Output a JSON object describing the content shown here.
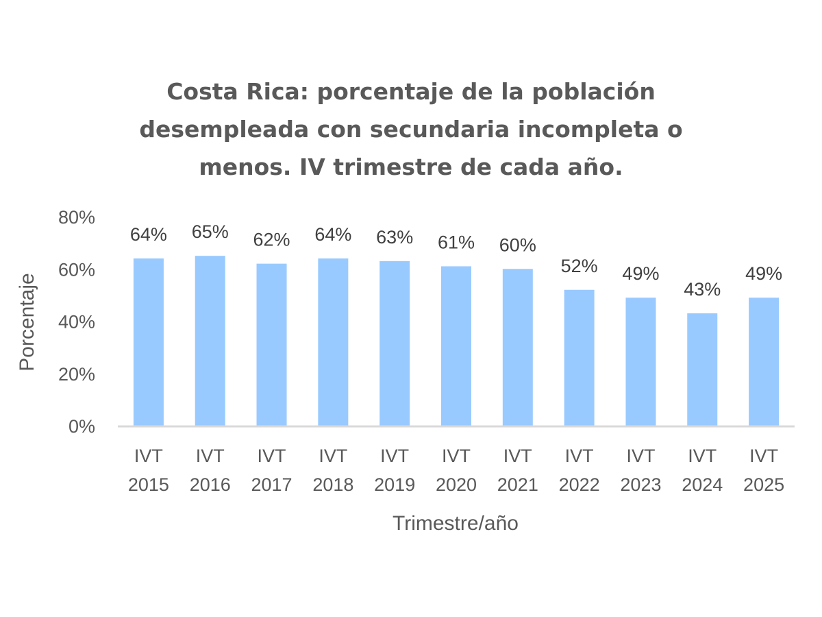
{
  "chart_data": {
    "type": "bar",
    "title": "Costa Rica: porcentaje de la población desempleada con secundaria incompleta o menos. IV trimestre de cada año.",
    "title_lines": [
      "Costa Rica: porcentaje de la población",
      "desempleada con secundaria incompleta o",
      "menos. IV trimestre de cada año."
    ],
    "categories": [
      [
        "IVT",
        "2015"
      ],
      [
        "IVT",
        "2016"
      ],
      [
        "IVT",
        "2017"
      ],
      [
        "IVT",
        "2018"
      ],
      [
        "IVT",
        "2019"
      ],
      [
        "IVT",
        "2020"
      ],
      [
        "IVT",
        "2021"
      ],
      [
        "IVT",
        "2022"
      ],
      [
        "IVT",
        "2023"
      ],
      [
        "IVT",
        "2024"
      ],
      [
        "IVT",
        "2025"
      ]
    ],
    "values": [
      64,
      65,
      62,
      64,
      63,
      61,
      60,
      52,
      49,
      43,
      49
    ],
    "data_labels": [
      "64%",
      "65%",
      "62%",
      "64%",
      "63%",
      "61%",
      "60%",
      "52%",
      "49%",
      "43%",
      "49%"
    ],
    "xlabel": "Trimestre/año",
    "ylabel": "Porcentaje",
    "ylim": [
      0,
      80
    ],
    "yticks": [
      0,
      20,
      40,
      60,
      80
    ],
    "ytick_labels": [
      "0%",
      "20%",
      "40%",
      "60%",
      "80%"
    ],
    "grid": false,
    "legend": "none",
    "bar_color": "#99CAFF",
    "axis_color": "#D9D9D9"
  }
}
